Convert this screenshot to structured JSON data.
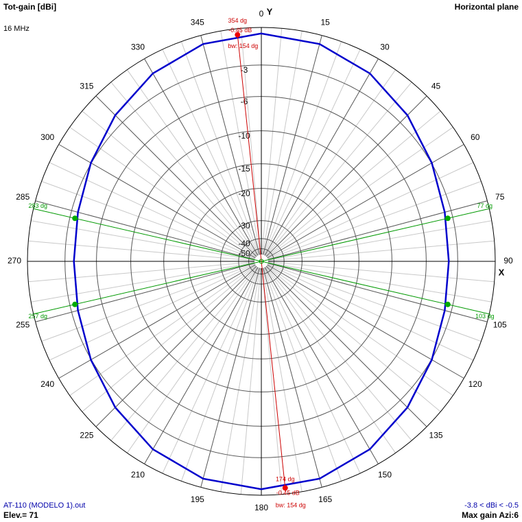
{
  "chart_data": {
    "type": "polar",
    "title": "Tot-gain [dBi]",
    "subtitle": "Horizontal plane",
    "frequency": "16 MHz",
    "file": "AT-110 (MODELO 1).out",
    "elevation": "Elev.= 71",
    "range_text": "-3.8 < dBi < -0.5",
    "max_gain_text": "Max gain Azi:6",
    "y_axis_label": "Y",
    "x_axis_label": "X",
    "rscale": "arrl-log",
    "rticks": [
      -3,
      -6,
      -10,
      -15,
      -20,
      -30,
      -40,
      -50
    ],
    "angle_ticks": [
      0,
      15,
      30,
      45,
      60,
      75,
      90,
      105,
      120,
      135,
      150,
      165,
      180,
      195,
      210,
      225,
      240,
      255,
      270,
      285,
      300,
      315,
      330,
      345
    ],
    "pattern": {
      "name": "Tot-gain",
      "color": "#0000cc",
      "angle": [
        0,
        15,
        30,
        45,
        60,
        75,
        90,
        105,
        120,
        135,
        150,
        165,
        180,
        195,
        210,
        225,
        240,
        255,
        270,
        285,
        300,
        315,
        330,
        345
      ],
      "gain": [
        -0.45,
        -0.67,
        -1.29,
        -2.13,
        -2.96,
        -3.58,
        -3.8,
        -3.58,
        -2.96,
        -2.13,
        -1.29,
        -0.67,
        -0.45,
        -0.67,
        -1.29,
        -2.13,
        -2.96,
        -3.58,
        -3.8,
        -3.58,
        -2.96,
        -2.13,
        -1.29,
        -0.67
      ]
    },
    "max_markers": [
      {
        "angle": 354,
        "label": "354 dg",
        "gain": -0.45,
        "gain_label": "-0.45 dB",
        "bw_label": "bw: 154 dg"
      },
      {
        "angle": 174,
        "label": "174 dg",
        "gain": -0.45,
        "gain_label": "-0.45 dB",
        "bw_label": "bw: 154 dg"
      }
    ],
    "beamwidth_markers": [
      {
        "angle": 77,
        "label": "77 dg",
        "gain": -3.45
      },
      {
        "angle": 103,
        "label": "103 dg",
        "gain": -3.45
      },
      {
        "angle": 257,
        "label": "257 dg",
        "gain": -3.45
      },
      {
        "angle": 283,
        "label": "283 dg",
        "gain": -3.45
      }
    ]
  }
}
